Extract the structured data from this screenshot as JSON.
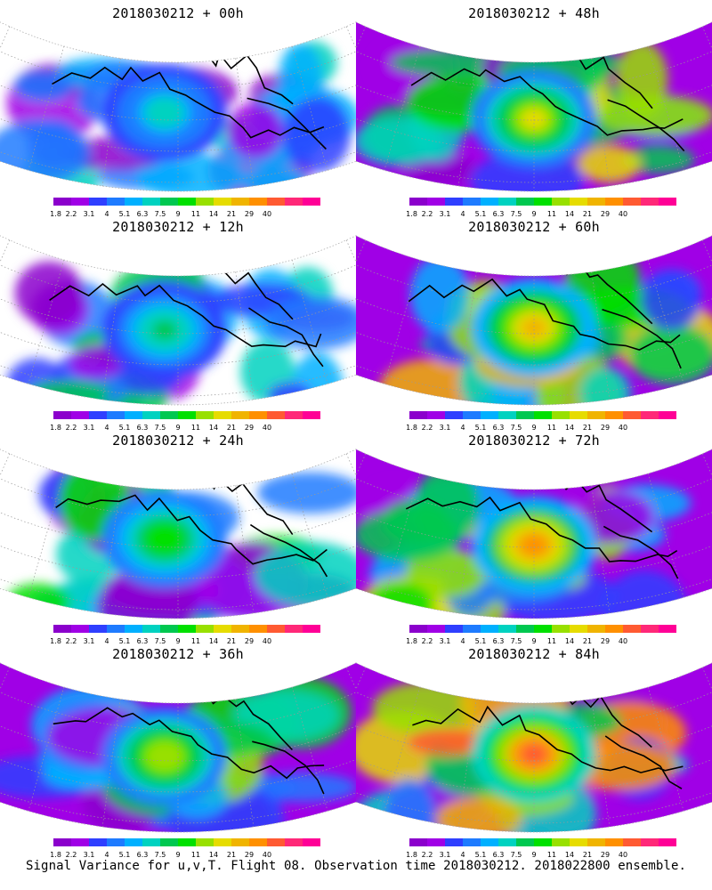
{
  "panels": [
    {
      "title": "2018030212 + 00h",
      "lead": "00h"
    },
    {
      "title": "2018030212 + 48h",
      "lead": "48h"
    },
    {
      "title": "2018030212 + 12h",
      "lead": "12h"
    },
    {
      "title": "2018030212 + 60h",
      "lead": "60h"
    },
    {
      "title": "2018030212 + 24h",
      "lead": "24h"
    },
    {
      "title": "2018030212 + 72h",
      "lead": "72h"
    },
    {
      "title": "2018030212 + 36h",
      "lead": "36h"
    },
    {
      "title": "2018030212 + 84h",
      "lead": "84h"
    }
  ],
  "colorbar": {
    "colors": [
      "#8b00cc",
      "#a000e6",
      "#2f3fff",
      "#1e7bff",
      "#00b0ff",
      "#00d2c0",
      "#00c850",
      "#00e000",
      "#98e000",
      "#e6dc00",
      "#f0b400",
      "#ff9000",
      "#ff5a32",
      "#ff2878",
      "#ff0096"
    ],
    "labels": [
      "1.8",
      "2.2",
      "3.1",
      "4",
      "5.1",
      "6.3",
      "7.5",
      "9",
      "11",
      "14",
      "21",
      "29",
      "40"
    ]
  },
  "footer": "Signal Variance for u,v,T. Flight 08. Observation time 2018030212. 2018022800 ensemble."
}
